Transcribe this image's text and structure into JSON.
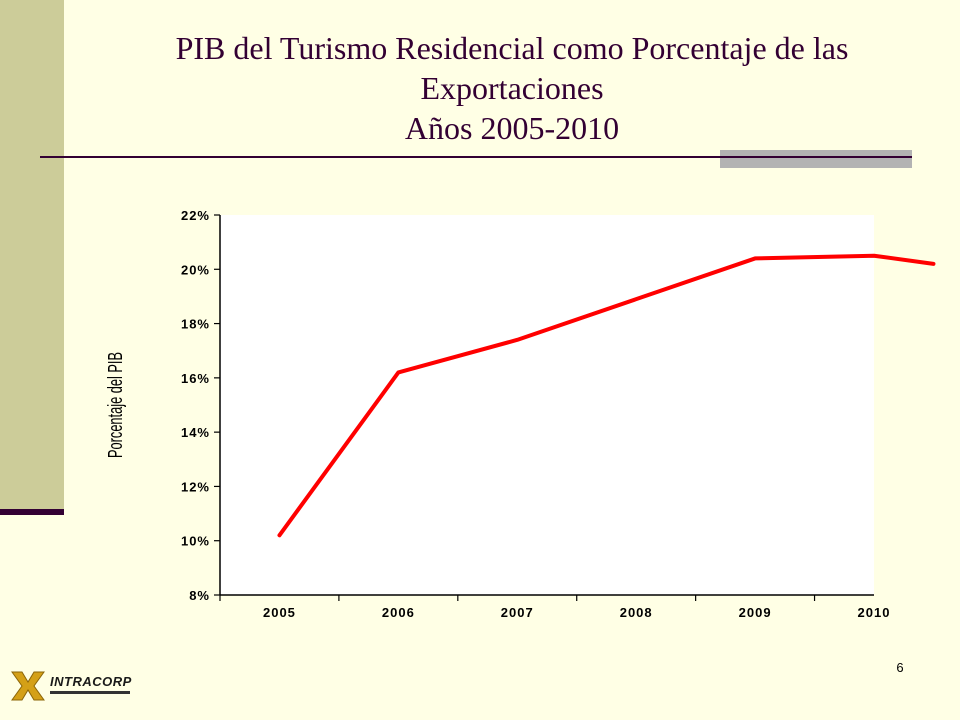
{
  "slide": {
    "title_lines": [
      "PIB del Turismo Residencial como Porcentaje de las",
      "Exportaciones",
      "Años 2005-2010"
    ],
    "page_number": "6",
    "logo_text": "INTRACORP"
  },
  "colors": {
    "background": "#FFFFE5",
    "accent_bar": "#CCCC99",
    "title": "#330033",
    "series_line": "#FF0000"
  },
  "chart_data": {
    "type": "line",
    "title": "",
    "xlabel": "",
    "ylabel": "Porcentaje del PIB",
    "categories": [
      "2005",
      "2006",
      "2007",
      "2008",
      "2009",
      "2010"
    ],
    "y_ticks": [
      "8%",
      "10%",
      "12%",
      "14%",
      "16%",
      "18%",
      "20%",
      "22%"
    ],
    "ylim": [
      8,
      22
    ],
    "grid": false,
    "legend": "none",
    "series": [
      {
        "points": [
          {
            "year": "2005",
            "value": 10.2
          },
          {
            "year": "2006",
            "value": 16.2
          },
          {
            "year": "2007",
            "value": 17.4
          },
          {
            "year": "2008",
            "value": 18.9
          },
          {
            "year": "2009",
            "value": 20.4
          },
          {
            "year": "2010",
            "value": 20.5
          },
          {
            "year": "2010+",
            "value": 20.2
          }
        ]
      }
    ]
  }
}
